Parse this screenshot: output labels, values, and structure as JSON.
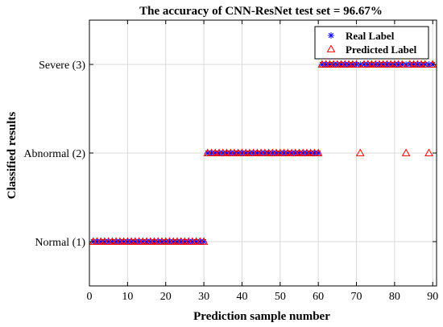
{
  "chart_data": {
    "type": "scatter",
    "title": "The accuracy of CNN-ResNet test set = 96.67%",
    "xlabel": "Prediction sample number",
    "ylabel": "Classified results",
    "xlim": [
      0,
      91
    ],
    "ylim": [
      0.5,
      3.5
    ],
    "xticks": [
      0,
      10,
      20,
      30,
      40,
      50,
      60,
      70,
      80,
      90
    ],
    "yticks": [
      1,
      2,
      3
    ],
    "ytick_labels": [
      "Normal (1)",
      "Abnormal (2)",
      "Severe (3)"
    ],
    "grid": true,
    "legend_position": "top-right",
    "series": [
      {
        "name": "Real Label",
        "marker": "asterisk",
        "color": "#0000ff",
        "x": [
          1,
          2,
          3,
          4,
          5,
          6,
          7,
          8,
          9,
          10,
          11,
          12,
          13,
          14,
          15,
          16,
          17,
          18,
          19,
          20,
          21,
          22,
          23,
          24,
          25,
          26,
          27,
          28,
          29,
          30,
          31,
          32,
          33,
          34,
          35,
          36,
          37,
          38,
          39,
          40,
          41,
          42,
          43,
          44,
          45,
          46,
          47,
          48,
          49,
          50,
          51,
          52,
          53,
          54,
          55,
          56,
          57,
          58,
          59,
          60,
          61,
          62,
          63,
          64,
          65,
          66,
          67,
          68,
          69,
          70,
          71,
          72,
          73,
          74,
          75,
          76,
          77,
          78,
          79,
          80,
          81,
          82,
          83,
          84,
          85,
          86,
          87,
          88,
          89,
          90
        ],
        "y": [
          1,
          1,
          1,
          1,
          1,
          1,
          1,
          1,
          1,
          1,
          1,
          1,
          1,
          1,
          1,
          1,
          1,
          1,
          1,
          1,
          1,
          1,
          1,
          1,
          1,
          1,
          1,
          1,
          1,
          1,
          2,
          2,
          2,
          2,
          2,
          2,
          2,
          2,
          2,
          2,
          2,
          2,
          2,
          2,
          2,
          2,
          2,
          2,
          2,
          2,
          2,
          2,
          2,
          2,
          2,
          2,
          2,
          2,
          2,
          2,
          3,
          3,
          3,
          3,
          3,
          3,
          3,
          3,
          3,
          3,
          3,
          3,
          3,
          3,
          3,
          3,
          3,
          3,
          3,
          3,
          3,
          3,
          3,
          3,
          3,
          3,
          3,
          3,
          3,
          3
        ]
      },
      {
        "name": "Predicted Label",
        "marker": "triangle",
        "color": "#ff0000",
        "x": [
          1,
          2,
          3,
          4,
          5,
          6,
          7,
          8,
          9,
          10,
          11,
          12,
          13,
          14,
          15,
          16,
          17,
          18,
          19,
          20,
          21,
          22,
          23,
          24,
          25,
          26,
          27,
          28,
          29,
          30,
          31,
          32,
          33,
          34,
          35,
          36,
          37,
          38,
          39,
          40,
          41,
          42,
          43,
          44,
          45,
          46,
          47,
          48,
          49,
          50,
          51,
          52,
          53,
          54,
          55,
          56,
          57,
          58,
          59,
          60,
          61,
          62,
          63,
          64,
          65,
          66,
          67,
          68,
          69,
          70,
          71,
          72,
          73,
          74,
          75,
          76,
          77,
          78,
          79,
          80,
          81,
          82,
          83,
          84,
          85,
          86,
          87,
          88,
          89,
          90
        ],
        "y": [
          1,
          1,
          1,
          1,
          1,
          1,
          1,
          1,
          1,
          1,
          1,
          1,
          1,
          1,
          1,
          1,
          1,
          1,
          1,
          1,
          1,
          1,
          1,
          1,
          1,
          1,
          1,
          1,
          1,
          1,
          2,
          2,
          2,
          2,
          2,
          2,
          2,
          2,
          2,
          2,
          2,
          2,
          2,
          2,
          2,
          2,
          2,
          2,
          2,
          2,
          2,
          2,
          2,
          2,
          2,
          2,
          2,
          2,
          2,
          2,
          3,
          3,
          3,
          3,
          3,
          3,
          3,
          3,
          3,
          3,
          2,
          3,
          3,
          3,
          3,
          3,
          3,
          3,
          3,
          3,
          3,
          3,
          2,
          3,
          3,
          3,
          3,
          3,
          2,
          3
        ]
      }
    ]
  }
}
